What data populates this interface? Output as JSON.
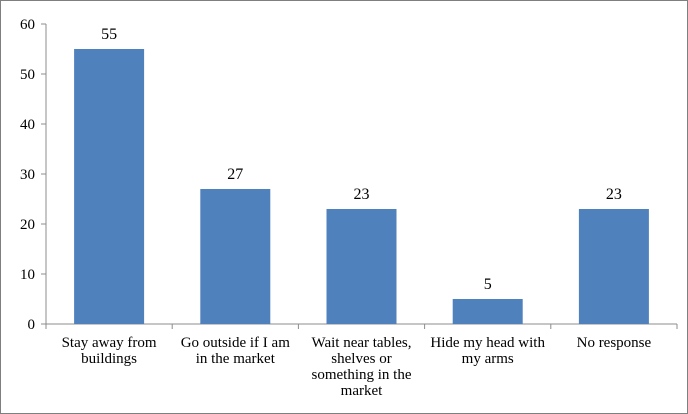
{
  "chart_data": {
    "type": "bar",
    "categories": [
      [
        "Stay away from",
        "buildings"
      ],
      [
        "Go outside if I am",
        "in the market"
      ],
      [
        "Wait near tables,",
        "shelves or",
        "something in the",
        "market"
      ],
      [
        "Hide my head with",
        "my arms"
      ],
      [
        "No response"
      ]
    ],
    "values": [
      55,
      27,
      23,
      5,
      23
    ],
    "data_labels": [
      "55",
      "27",
      "23",
      "5",
      "23"
    ],
    "y_ticks": [
      "0",
      "10",
      "20",
      "30",
      "40",
      "50",
      "60"
    ],
    "ylim": [
      0,
      60
    ],
    "grid": false,
    "legend": "none",
    "bar_color": "#4F81BD",
    "axis_color": "#8C8C8C"
  }
}
